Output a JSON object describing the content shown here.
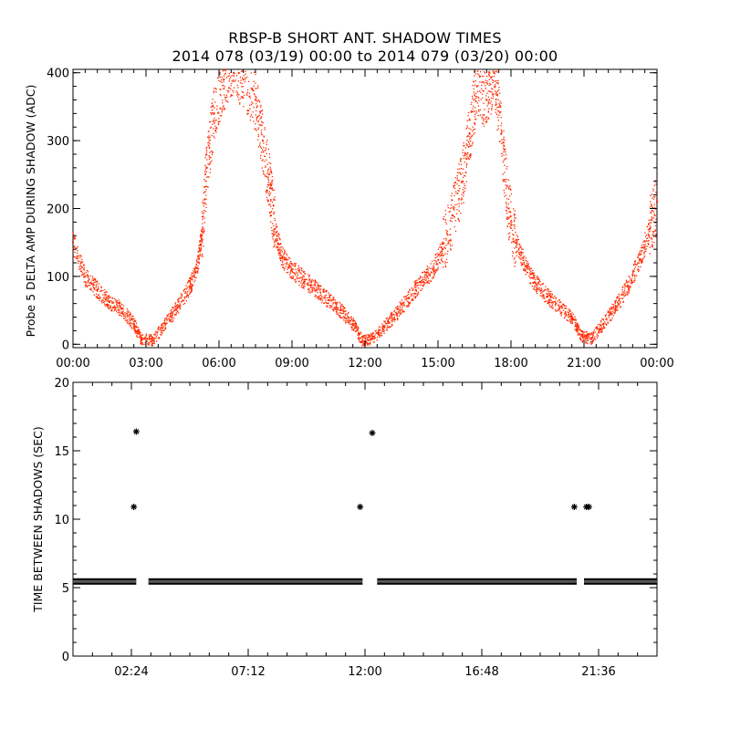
{
  "figure": {
    "title_line1": "RBSP-B SHORT ANT. SHADOW TIMES",
    "title_line2": "2014 078 (03/19) 00:00 to 2014 079 (03/20) 00:00"
  },
  "chart_data": [
    {
      "type": "scatter",
      "ylabel": "Probe 5 DELTA AMP DURING SHADOW (ADC)",
      "xlabel": "",
      "xlim": [
        0,
        24
      ],
      "ylim": [
        -5,
        405
      ],
      "xtick_values": [
        0,
        3,
        6,
        9,
        12,
        15,
        18,
        21,
        24
      ],
      "xtick_labels": [
        "00:00",
        "03:00",
        "06:00",
        "09:00",
        "12:00",
        "15:00",
        "18:00",
        "21:00",
        "00:00"
      ],
      "ytick_values": [
        0,
        100,
        200,
        300,
        400
      ],
      "ytick_labels": [
        "0",
        "100",
        "200",
        "300",
        "400"
      ],
      "grid": false,
      "legend": "none",
      "marker_color": "#ff2a00",
      "series": [
        {
          "x": [
            0.0,
            0.5,
            1.0,
            1.5,
            2.0,
            2.5,
            2.8,
            3.3,
            3.8,
            4.3,
            4.8,
            5.1,
            5.3,
            5.5,
            5.8,
            6.2,
            6.6,
            7.0,
            7.5,
            7.8,
            8.1,
            8.3,
            8.6,
            9.0,
            9.5,
            10.0,
            10.5,
            11.0,
            11.5,
            11.9,
            12.3,
            12.8,
            13.3,
            13.8,
            14.3,
            14.8,
            15.2,
            15.6,
            16.0,
            16.3,
            16.6,
            17.0,
            17.3,
            17.6,
            17.9,
            18.2,
            18.6,
            19.0,
            19.5,
            20.0,
            20.5,
            20.9,
            21.3,
            21.8,
            22.3,
            22.8,
            23.3,
            23.7,
            24.0
          ],
          "y": [
            150,
            100,
            80,
            62,
            52,
            30,
            8,
            6,
            30,
            55,
            85,
            112,
            160,
            260,
            340,
            390,
            400,
            390,
            360,
            300,
            230,
            170,
            128,
            110,
            95,
            80,
            65,
            50,
            30,
            5,
            8,
            25,
            45,
            68,
            92,
            110,
            140,
            190,
            240,
            310,
            380,
            360,
            400,
            310,
            200,
            150,
            115,
            90,
            70,
            55,
            40,
            12,
            8,
            30,
            55,
            85,
            125,
            170,
            210
          ]
        }
      ]
    },
    {
      "type": "scatter",
      "ylabel": "TIME BETWEEN SHADOWS (SEC)",
      "xlabel": "",
      "xlim": [
        0,
        24
      ],
      "ylim": [
        0,
        20
      ],
      "xtick_values": [
        2.4,
        7.2,
        12.0,
        16.8,
        21.6
      ],
      "xtick_labels": [
        "02:24",
        "07:12",
        "12:00",
        "16:48",
        "21:36"
      ],
      "ytick_values": [
        0,
        5,
        10,
        15,
        20
      ],
      "ytick_labels": [
        "0",
        "5",
        "10",
        "15",
        "20"
      ],
      "grid": false,
      "legend": "none",
      "marker": "asterisk",
      "marker_color": "#000000",
      "baseline": {
        "y": 5.45,
        "segments": [
          [
            0.0,
            2.6
          ],
          [
            3.1,
            11.9
          ],
          [
            12.5,
            20.7
          ],
          [
            21.0,
            24.0
          ]
        ]
      },
      "outliers": {
        "x": [
          2.5,
          2.6,
          11.8,
          12.3,
          20.6,
          21.1,
          21.2
        ],
        "y": [
          10.9,
          16.4,
          10.9,
          16.3,
          10.9,
          10.9,
          10.9
        ]
      }
    }
  ]
}
